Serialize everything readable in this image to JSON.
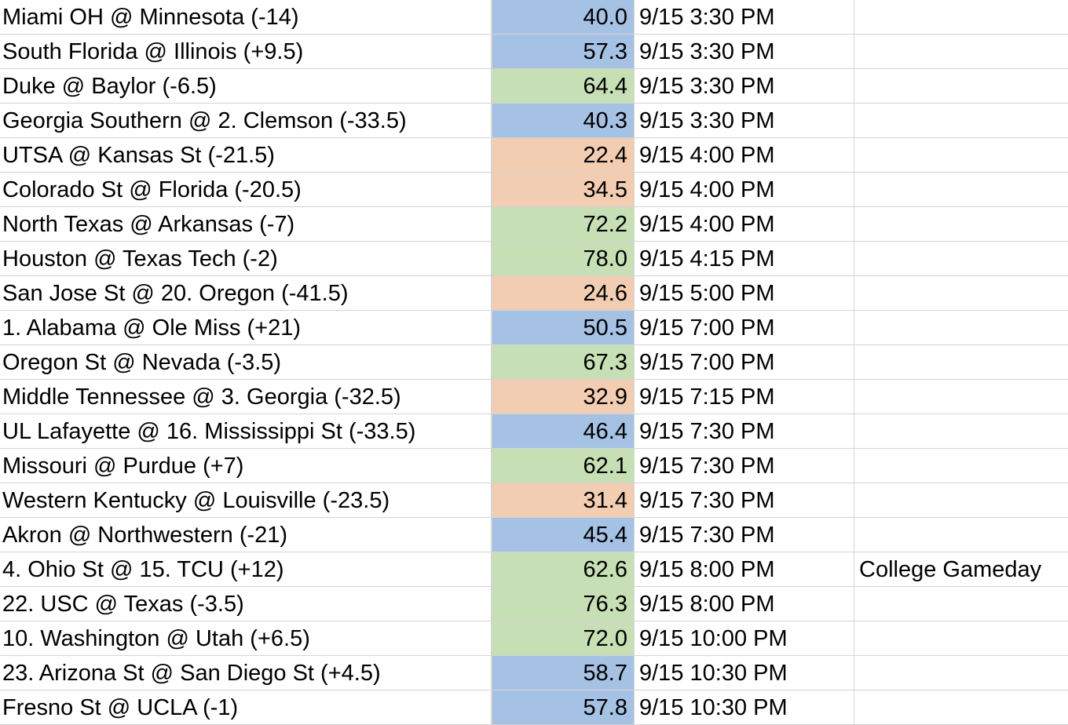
{
  "colors": {
    "blue": "#a5c2e5",
    "green": "#c6dfb5",
    "orange": "#f2cdb1",
    "gridline": "#d4d4d4"
  },
  "rows": [
    {
      "game": "Miami OH @ Minnesota (-14)",
      "score": "40.0",
      "time": "9/15 3:30 PM",
      "note": "",
      "color": "blue"
    },
    {
      "game": "South Florida @ Illinois (+9.5)",
      "score": "57.3",
      "time": "9/15 3:30 PM",
      "note": "",
      "color": "blue"
    },
    {
      "game": "Duke @ Baylor (-6.5)",
      "score": "64.4",
      "time": "9/15 3:30 PM",
      "note": "",
      "color": "green"
    },
    {
      "game": "Georgia Southern @ 2. Clemson (-33.5)",
      "score": "40.3",
      "time": "9/15 3:30 PM",
      "note": "",
      "color": "blue"
    },
    {
      "game": "UTSA @ Kansas St (-21.5)",
      "score": "22.4",
      "time": "9/15 4:00 PM",
      "note": "",
      "color": "orange"
    },
    {
      "game": "Colorado St @ Florida (-20.5)",
      "score": "34.5",
      "time": "9/15 4:00 PM",
      "note": "",
      "color": "orange"
    },
    {
      "game": "North Texas @ Arkansas (-7)",
      "score": "72.2",
      "time": "9/15 4:00 PM",
      "note": "",
      "color": "green"
    },
    {
      "game": "Houston @ Texas Tech (-2)",
      "score": "78.0",
      "time": "9/15 4:15 PM",
      "note": "",
      "color": "green"
    },
    {
      "game": "San Jose St @ 20. Oregon (-41.5)",
      "score": "24.6",
      "time": "9/15 5:00 PM",
      "note": "",
      "color": "orange"
    },
    {
      "game": "1. Alabama @ Ole Miss (+21)",
      "score": "50.5",
      "time": "9/15 7:00 PM",
      "note": "",
      "color": "blue"
    },
    {
      "game": "Oregon St @ Nevada (-3.5)",
      "score": "67.3",
      "time": "9/15 7:00 PM",
      "note": "",
      "color": "green"
    },
    {
      "game": "Middle Tennessee @ 3. Georgia (-32.5)",
      "score": "32.9",
      "time": "9/15 7:15 PM",
      "note": "",
      "color": "orange"
    },
    {
      "game": "UL Lafayette @ 16. Mississippi St (-33.5)",
      "score": "46.4",
      "time": "9/15 7:30 PM",
      "note": "",
      "color": "blue"
    },
    {
      "game": "Missouri @ Purdue (+7)",
      "score": "62.1",
      "time": "9/15 7:30 PM",
      "note": "",
      "color": "green"
    },
    {
      "game": "Western Kentucky @ Louisville (-23.5)",
      "score": "31.4",
      "time": "9/15 7:30 PM",
      "note": "",
      "color": "orange"
    },
    {
      "game": "Akron @ Northwestern (-21)",
      "score": "45.4",
      "time": "9/15 7:30 PM",
      "note": "",
      "color": "blue"
    },
    {
      "game": "4. Ohio St @ 15. TCU (+12)",
      "score": "62.6",
      "time": "9/15 8:00 PM",
      "note": "College Gameday",
      "color": "green"
    },
    {
      "game": "22. USC @ Texas (-3.5)",
      "score": "76.3",
      "time": "9/15 8:00 PM",
      "note": "",
      "color": "green"
    },
    {
      "game": "10. Washington @ Utah (+6.5)",
      "score": "72.0",
      "time": "9/15 10:00 PM",
      "note": "",
      "color": "green"
    },
    {
      "game": "23. Arizona St @ San Diego St (+4.5)",
      "score": "58.7",
      "time": "9/15 10:30 PM",
      "note": "",
      "color": "blue"
    },
    {
      "game": "Fresno St @ UCLA (-1)",
      "score": "57.8",
      "time": "9/15 10:30 PM",
      "note": "",
      "color": "blue"
    }
  ]
}
